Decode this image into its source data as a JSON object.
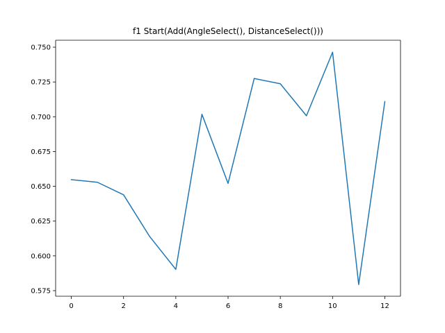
{
  "chart_data": {
    "type": "line",
    "title": "f1 Start(Add(AngleSelect(), DistanceSelect()))",
    "xlabel": "",
    "ylabel": "",
    "xlim": [
      -0.6,
      12.6
    ],
    "ylim": [
      0.571,
      0.755
    ],
    "grid": false,
    "legend": "none",
    "x_ticks": [
      0,
      2,
      4,
      6,
      8,
      10,
      12
    ],
    "x_tick_labels": [
      "0",
      "2",
      "4",
      "6",
      "8",
      "10",
      "12"
    ],
    "y_ticks": [
      0.575,
      0.6,
      0.625,
      0.65,
      0.675,
      0.7,
      0.725,
      0.75
    ],
    "y_tick_labels": [
      "0.575",
      "0.600",
      "0.625",
      "0.650",
      "0.675",
      "0.700",
      "0.725",
      "0.750"
    ],
    "series": [
      {
        "color": "#1f77b4",
        "x": [
          0,
          1,
          2,
          3,
          4,
          5,
          6,
          7,
          8,
          9,
          10,
          11,
          12
        ],
        "values": [
          0.6548,
          0.6529,
          0.6439,
          0.6139,
          0.5903,
          0.7018,
          0.6521,
          0.7275,
          0.7237,
          0.7007,
          0.7464,
          0.5794,
          0.7109
        ]
      }
    ]
  }
}
